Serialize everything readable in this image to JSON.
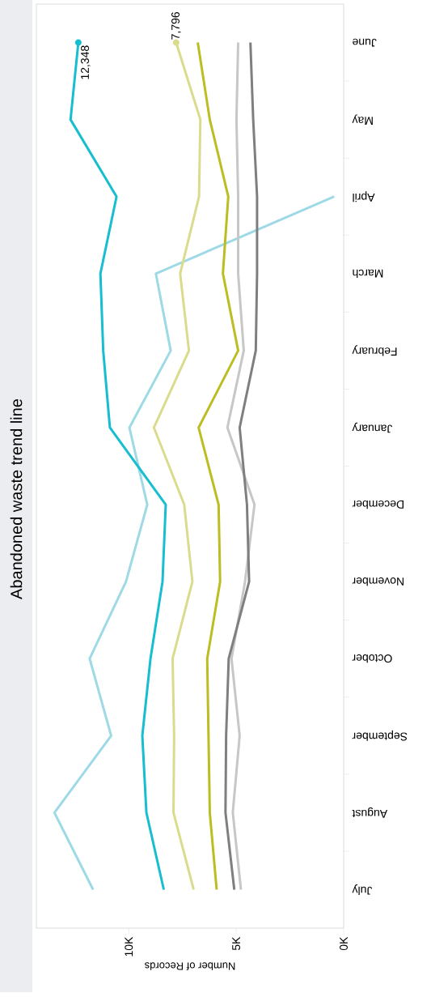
{
  "chart_data": {
    "type": "line",
    "title": "Abandoned waste trend line",
    "xlabel": "Number of Records",
    "categories": [
      "June",
      "May",
      "April",
      "March",
      "February",
      "January",
      "December",
      "November",
      "October",
      "September",
      "August",
      "July"
    ],
    "orientation": "horizontal",
    "xlim": [
      14300,
      0
    ],
    "xticks": [
      {
        "value": 0,
        "label": "0K"
      },
      {
        "value": 5000,
        "label": "5K"
      },
      {
        "value": 10000,
        "label": "10K"
      }
    ],
    "grid": false,
    "line_style": "solid",
    "series": [
      {
        "color": "#9edae5",
        "values": [
          null,
          null,
          440,
          8740,
          8050,
          9970,
          9140,
          10130,
          11820,
          10820,
          13460,
          11660
        ]
      },
      {
        "color": "#17becf",
        "values": [
          12348,
          12710,
          10570,
          11320,
          11190,
          10880,
          8280,
          8430,
          8990,
          9370,
          9180,
          8370
        ],
        "value_labels": [
          "12,348",
          null,
          null,
          null,
          null,
          null,
          null,
          null,
          null,
          null,
          null,
          null
        ]
      },
      {
        "color": "#dbdb8d",
        "values": [
          7796,
          6670,
          6730,
          7610,
          7200,
          8830,
          7420,
          7040,
          7960,
          7890,
          7920,
          6980
        ],
        "value_labels": [
          "7,796",
          null,
          null,
          null,
          null,
          null,
          null,
          null,
          null,
          null,
          null,
          null
        ]
      },
      {
        "color": "#bcbd22",
        "values": [
          6790,
          6230,
          5370,
          5620,
          4910,
          6750,
          5820,
          5750,
          6350,
          6290,
          6230,
          5910
        ]
      },
      {
        "color": "#c7c7c7",
        "values": [
          4910,
          4990,
          4910,
          4910,
          4650,
          5410,
          4150,
          4590,
          5220,
          4840,
          5160,
          4780
        ]
      },
      {
        "color": "#7f7f7f",
        "values": [
          4340,
          4210,
          4030,
          4030,
          4090,
          4840,
          4500,
          4400,
          5350,
          5470,
          5500,
          5090
        ]
      }
    ]
  }
}
